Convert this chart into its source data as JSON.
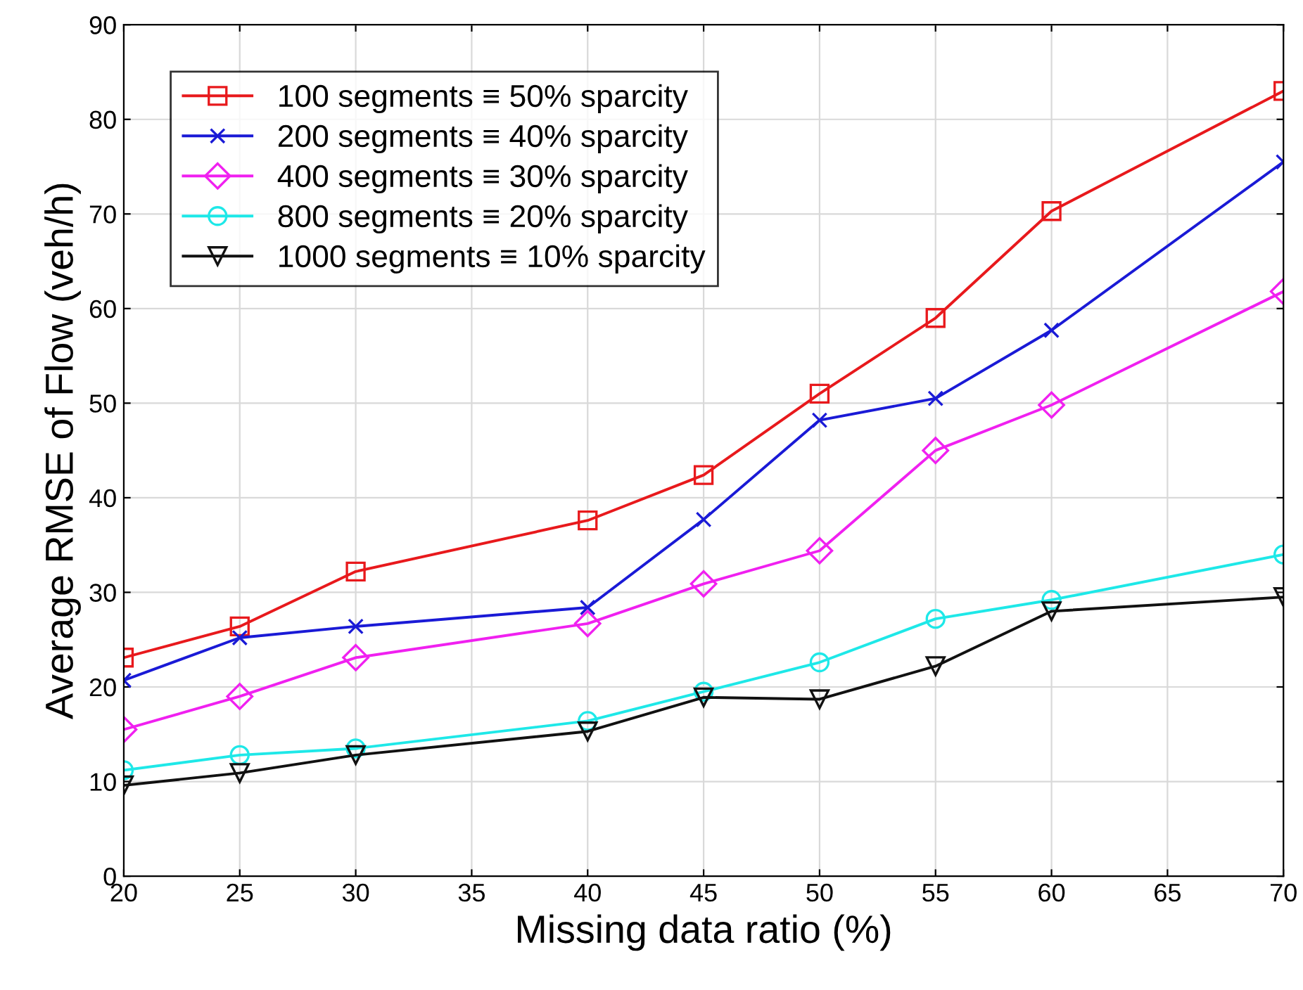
{
  "chart_data": {
    "type": "line",
    "xlabel": "Missing data ratio (%)",
    "ylabel": "Average RMSE of Flow (veh/h)",
    "x": [
      20,
      25,
      30,
      40,
      45,
      50,
      55,
      60,
      70
    ],
    "xlim": [
      20,
      70
    ],
    "xticks": [
      20,
      25,
      30,
      35,
      40,
      45,
      50,
      55,
      60,
      65,
      70
    ],
    "ylim": [
      0,
      90
    ],
    "yticks": [
      0,
      10,
      20,
      30,
      40,
      50,
      60,
      70,
      80,
      90
    ],
    "grid": true,
    "legend": "top left",
    "line_style": "solid",
    "series": [
      {
        "name": "100 segments ≡ 50% sparcity",
        "color": "#e8191c",
        "marker": "square",
        "values": [
          23.1,
          26.4,
          32.2,
          37.6,
          42.4,
          51,
          59,
          70.3,
          83
        ]
      },
      {
        "name": "200 segments ≡ 40% sparcity",
        "color": "#1a1ad6",
        "marker": "cross",
        "values": [
          20.7,
          25.2,
          26.4,
          28.4,
          37.7,
          48.2,
          50.5,
          57.7,
          75.5
        ]
      },
      {
        "name": "400 segments ≡ 30% sparcity",
        "color": "#f020f0",
        "marker": "diamond",
        "values": [
          15.5,
          19,
          23.1,
          26.7,
          30.9,
          34.4,
          45,
          49.8,
          61.8
        ]
      },
      {
        "name": "800 segments ≡ 20% sparcity",
        "color": "#1ee8e8",
        "marker": "circle",
        "values": [
          11.2,
          12.8,
          13.5,
          16.4,
          19.5,
          22.6,
          27.2,
          29.2,
          34
        ]
      },
      {
        "name": "1000 segments ≡ 10% sparcity",
        "color": "#111111",
        "marker": "triangle",
        "values": [
          9.6,
          10.9,
          12.8,
          15.3,
          18.9,
          18.7,
          22.2,
          28,
          29.5
        ]
      }
    ]
  }
}
